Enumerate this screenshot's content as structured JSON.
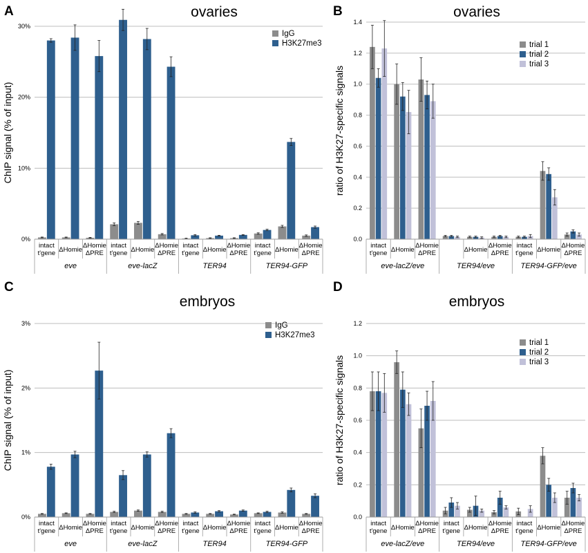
{
  "colors": {
    "IgG": "#8c8c8c",
    "H3K27me3": "#2e5f8e",
    "trial 1": "#8c8c8c",
    "trial 2": "#2e5f8e",
    "trial 3": "#c1c1d9",
    "grid": "#bdbdbd"
  },
  "chart_data": [
    {
      "panel": "A",
      "type": "bar",
      "title": "ovaries",
      "ylabel": "ChIP signal (% of input)",
      "ylim": [
        0,
        30
      ],
      "yticks": [
        0,
        10,
        20,
        30
      ],
      "yticklabels": [
        "0%",
        "10%",
        "20%",
        "30%"
      ],
      "categories": [
        {
          "line1": "intact",
          "line2": "t'gene"
        },
        {
          "line1": "ΔHomie",
          "line2": ""
        },
        {
          "line1": "ΔHomie",
          "line2": "ΔPRE"
        },
        {
          "line1": "intact",
          "line2": "t'gene"
        },
        {
          "line1": "ΔHomie",
          "line2": ""
        },
        {
          "line1": "ΔHomie",
          "line2": "ΔPRE"
        },
        {
          "line1": "intact",
          "line2": "t'gene"
        },
        {
          "line1": "ΔHomie",
          "line2": ""
        },
        {
          "line1": "ΔHomie",
          "line2": "ΔPRE"
        },
        {
          "line1": "intact",
          "line2": "t'gene"
        },
        {
          "line1": "ΔHomie",
          "line2": ""
        },
        {
          "line1": "ΔHomie",
          "line2": "ΔPRE"
        }
      ],
      "groups": [
        {
          "label": "eve",
          "count": 3
        },
        {
          "label": "eve-lacZ",
          "count": 3
        },
        {
          "label": "TER94",
          "count": 3
        },
        {
          "label": "TER94-GFP",
          "count": 3
        }
      ],
      "series": [
        {
          "name": "IgG",
          "values": [
            0.25,
            0.25,
            0.2,
            2.1,
            2.3,
            0.7,
            0.1,
            0.15,
            0.15,
            0.8,
            1.8,
            0.5
          ],
          "errors": [
            0.05,
            0.05,
            0.05,
            0.2,
            0.2,
            0.1,
            0.05,
            0.05,
            0.05,
            0.1,
            0.15,
            0.1
          ]
        },
        {
          "name": "H3K27me3",
          "values": [
            28.0,
            28.4,
            25.8,
            30.9,
            28.2,
            24.3,
            0.55,
            0.5,
            0.6,
            1.3,
            13.7,
            1.7
          ],
          "errors": [
            0.25,
            1.8,
            2.2,
            1.5,
            1.5,
            1.4,
            0.1,
            0.05,
            0.05,
            0.1,
            0.5,
            0.15
          ]
        }
      ],
      "legend": [
        "IgG",
        "H3K27me3"
      ],
      "legend_position": "top-right",
      "grid": true
    },
    {
      "panel": "B",
      "type": "bar",
      "title": "ovaries",
      "ylabel": "ratio of H3K27-specific signals",
      "ylim": [
        0,
        1.4
      ],
      "yticks": [
        0,
        0.2,
        0.4,
        0.6,
        0.8,
        1.0,
        1.2,
        1.4
      ],
      "yticklabels": [
        "0.0",
        "0.2",
        "0.4",
        "0.6",
        "0.8",
        "1.0",
        "1.2",
        "1.4"
      ],
      "categories": [
        {
          "line1": "intact",
          "line2": "t'gene"
        },
        {
          "line1": "ΔHomie",
          "line2": ""
        },
        {
          "line1": "ΔHomie",
          "line2": "ΔPRE"
        },
        {
          "line1": "",
          "line2": ""
        },
        {
          "line1": "ΔHomie",
          "line2": ""
        },
        {
          "line1": "ΔHomie",
          "line2": "ΔPRE"
        },
        {
          "line1": "intact",
          "line2": "t'gene"
        },
        {
          "line1": "ΔHomie",
          "line2": ""
        },
        {
          "line1": "ΔHomie",
          "line2": "ΔPRE"
        }
      ],
      "groups": [
        {
          "label": "eve-lacZ/eve",
          "count": 3
        },
        {
          "label": "TER94/eve",
          "count": 3
        },
        {
          "label": "TER94-GFP/eve",
          "count": 3
        }
      ],
      "series": [
        {
          "name": "trial 1",
          "values": [
            1.24,
            1.0,
            1.03,
            0.02,
            0.015,
            0.015,
            0.015,
            0.44,
            0.03
          ],
          "errors": [
            0.14,
            0.13,
            0.14,
            0.005,
            0.005,
            0.005,
            0.005,
            0.06,
            0.01
          ]
        },
        {
          "name": "trial 2",
          "values": [
            1.04,
            0.92,
            0.93,
            0.02,
            0.015,
            0.02,
            0.015,
            0.42,
            0.05
          ],
          "errors": [
            0.06,
            0.09,
            0.09,
            0.005,
            0.005,
            0.005,
            0.005,
            0.04,
            0.01
          ]
        },
        {
          "name": "trial 3",
          "values": [
            1.23,
            0.82,
            0.89,
            0.015,
            0.01,
            0.015,
            0.02,
            0.27,
            0.03
          ],
          "errors": [
            0.18,
            0.14,
            0.11,
            0.005,
            0.005,
            0.005,
            0.01,
            0.05,
            0.01
          ]
        }
      ],
      "legend": [
        "trial 1",
        "trial 2",
        "trial 3"
      ],
      "legend_position": "top-right",
      "grid": true
    },
    {
      "panel": "C",
      "type": "bar",
      "title": "embryos",
      "ylabel": "ChIP signal (% of input)",
      "ylim": [
        0,
        3
      ],
      "yticks": [
        0,
        1,
        2,
        3
      ],
      "yticklabels": [
        "0%",
        "1%",
        "2%",
        "3%"
      ],
      "categories": [
        {
          "line1": "intact",
          "line2": "t'gene"
        },
        {
          "line1": "ΔHomie",
          "line2": ""
        },
        {
          "line1": "ΔHomie",
          "line2": "ΔPRE"
        },
        {
          "line1": "intact",
          "line2": "t'gene"
        },
        {
          "line1": "ΔHomie",
          "line2": ""
        },
        {
          "line1": "ΔHomie",
          "line2": "ΔPRE"
        },
        {
          "line1": "intact",
          "line2": "t'gene"
        },
        {
          "line1": "ΔHomie",
          "line2": ""
        },
        {
          "line1": "ΔHomie",
          "line2": "ΔPRE"
        },
        {
          "line1": "intact",
          "line2": "t'gene"
        },
        {
          "line1": "ΔHomie",
          "line2": ""
        },
        {
          "line1": "ΔHomie",
          "line2": "ΔPRE"
        }
      ],
      "groups": [
        {
          "label": "eve",
          "count": 3
        },
        {
          "label": "eve-lacZ",
          "count": 3
        },
        {
          "label": "TER94",
          "count": 3
        },
        {
          "label": "TER94-GFP",
          "count": 3
        }
      ],
      "series": [
        {
          "name": "IgG",
          "values": [
            0.05,
            0.06,
            0.05,
            0.08,
            0.1,
            0.08,
            0.05,
            0.05,
            0.04,
            0.06,
            0.07,
            0.05
          ],
          "errors": [
            0.005,
            0.005,
            0.005,
            0.01,
            0.01,
            0.01,
            0.005,
            0.005,
            0.005,
            0.005,
            0.01,
            0.005
          ]
        },
        {
          "name": "H3K27me3",
          "values": [
            0.78,
            0.97,
            2.27,
            0.65,
            0.97,
            1.3,
            0.07,
            0.09,
            0.1,
            0.08,
            0.42,
            0.33
          ],
          "errors": [
            0.04,
            0.05,
            0.44,
            0.07,
            0.04,
            0.07,
            0.01,
            0.01,
            0.01,
            0.01,
            0.03,
            0.03
          ]
        }
      ],
      "legend": [
        "IgG",
        "H3K27me3"
      ],
      "legend_position": "top-right",
      "grid": true
    },
    {
      "panel": "D",
      "type": "bar",
      "title": "embryos",
      "ylabel": "ratio of H3K27-specific signals",
      "ylim": [
        0,
        1.2
      ],
      "yticks": [
        0,
        0.2,
        0.4,
        0.6,
        0.8,
        1.0,
        1.2
      ],
      "yticklabels": [
        "0.0",
        "0.2",
        "0.4",
        "0.6",
        "0.8",
        "1.0",
        "1.2"
      ],
      "categories": [
        {
          "line1": "intact",
          "line2": "t'gene"
        },
        {
          "line1": "ΔHomie",
          "line2": ""
        },
        {
          "line1": "ΔHomie",
          "line2": "ΔPRE"
        },
        {
          "line1": "intact",
          "line2": "t'gene"
        },
        {
          "line1": "ΔHomie",
          "line2": ""
        },
        {
          "line1": "ΔHomie",
          "line2": "ΔPRE"
        },
        {
          "line1": "intact",
          "line2": "t'gene"
        },
        {
          "line1": "ΔHomie",
          "line2": ""
        },
        {
          "line1": "ΔHomie",
          "line2": "ΔPRE"
        }
      ],
      "groups": [
        {
          "label": "eve-lacZ/eve",
          "count": 3
        },
        {
          "label": "TER94/eve",
          "count": 3
        },
        {
          "label": "TER94-GFP/eve",
          "count": 3
        }
      ],
      "series": [
        {
          "name": "trial 1",
          "values": [
            0.78,
            0.96,
            0.55,
            0.04,
            0.045,
            0.03,
            0.035,
            0.38,
            0.12
          ],
          "errors": [
            0.12,
            0.07,
            0.12,
            0.02,
            0.015,
            0.01,
            0.02,
            0.05,
            0.04
          ]
        },
        {
          "name": "trial 2",
          "values": [
            0.78,
            0.79,
            0.69,
            0.09,
            0.07,
            0.12,
            0.0,
            0.2,
            0.18
          ],
          "errors": [
            0.12,
            0.11,
            0.09,
            0.03,
            0.06,
            0.04,
            0.0,
            0.04,
            0.03
          ]
        },
        {
          "name": "trial 3",
          "values": [
            0.77,
            0.7,
            0.72,
            0.07,
            0.04,
            0.06,
            0.05,
            0.12,
            0.12
          ],
          "errors": [
            0.12,
            0.07,
            0.12,
            0.02,
            0.01,
            0.01,
            0.02,
            0.03,
            0.02
          ]
        }
      ],
      "legend": [
        "trial 1",
        "trial 2",
        "trial 3"
      ],
      "legend_position": "top-right",
      "grid": true
    }
  ]
}
